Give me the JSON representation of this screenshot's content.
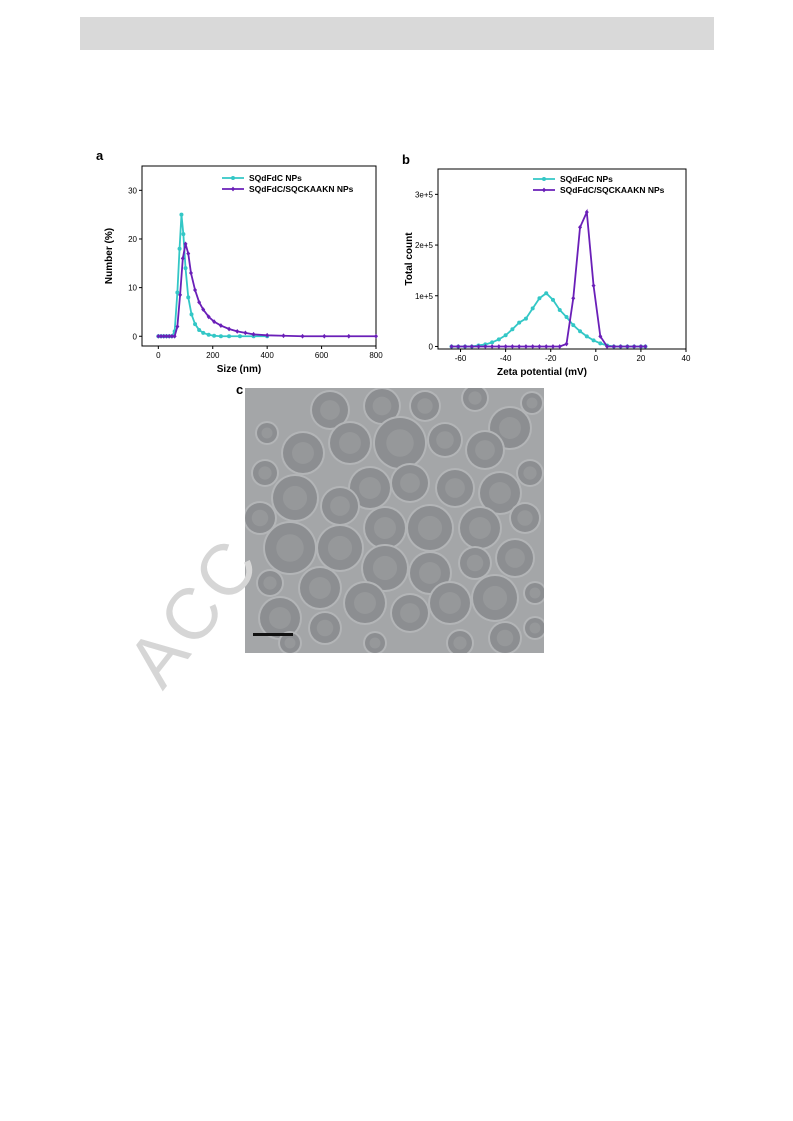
{
  "watermark_text": "ACC",
  "panels": {
    "a": "a",
    "b": "b",
    "c": "c"
  },
  "chart_data": [
    {
      "type": "line",
      "xlabel": "Size (nm)",
      "ylabel": "Number (%)",
      "xlim": [
        -60,
        800
      ],
      "ylim": [
        -2,
        35
      ],
      "xticks": [
        0,
        200,
        400,
        600,
        800
      ],
      "yticks": [
        0,
        10,
        20,
        30
      ],
      "legend_position": "top-right",
      "series": [
        {
          "name": "SQdFdC NPs",
          "color": "#33c7c6",
          "x": [
            0,
            10,
            20,
            30,
            40,
            50,
            60,
            70,
            78,
            85,
            92,
            100,
            110,
            122,
            135,
            150,
            165,
            185,
            205,
            230,
            260,
            300,
            350,
            400
          ],
          "y": [
            0,
            0,
            0,
            0,
            0,
            0,
            1,
            9,
            18,
            25,
            21,
            14,
            8,
            4.5,
            2.5,
            1.3,
            0.7,
            0.3,
            0.1,
            0,
            0,
            0,
            0,
            0
          ]
        },
        {
          "name": "SQdFdC/SQCKAAKN NPs",
          "color": "#6a1fb8",
          "x": [
            0,
            10,
            20,
            30,
            40,
            50,
            60,
            70,
            80,
            90,
            100,
            110,
            120,
            135,
            150,
            165,
            185,
            205,
            230,
            260,
            290,
            320,
            350,
            400,
            460,
            530,
            610,
            700,
            800
          ],
          "y": [
            0,
            0,
            0,
            0,
            0,
            0,
            0,
            2,
            8.5,
            16,
            19,
            17,
            13,
            9.5,
            7,
            5.5,
            4,
            3,
            2.2,
            1.5,
            1,
            0.7,
            0.4,
            0.2,
            0.1,
            0,
            0,
            0,
            0
          ]
        }
      ]
    },
    {
      "type": "line",
      "xlabel": "Zeta potential (mV)",
      "ylabel": "Total count",
      "xlim": [
        -70,
        40
      ],
      "ylim": [
        -5000,
        350000
      ],
      "xticks": [
        -60,
        -40,
        -20,
        0,
        20,
        40
      ],
      "xtick_labels": [
        "-60",
        "-40",
        "-20",
        "0",
        "20",
        "40"
      ],
      "yticks": [
        0,
        100000,
        200000,
        300000
      ],
      "ytick_labels": [
        "0",
        "1e+5",
        "2e+5",
        "3e+5"
      ],
      "legend_position": "top-right",
      "series": [
        {
          "name": "SQdFdC NPs",
          "color": "#33c7c6",
          "x": [
            -64,
            -61,
            -58,
            -55,
            -52,
            -49,
            -46,
            -43,
            -40,
            -37,
            -34,
            -31,
            -28,
            -25,
            -22,
            -19,
            -16,
            -13,
            -10,
            -7,
            -4,
            -1,
            2,
            5,
            8,
            11,
            14,
            17,
            20,
            22
          ],
          "y": [
            0,
            0,
            0,
            0,
            2000,
            4000,
            8000,
            14000,
            22000,
            34000,
            47000,
            55000,
            75000,
            95000,
            105000,
            92000,
            72000,
            58000,
            42000,
            30000,
            20000,
            12000,
            6000,
            2000,
            0,
            0,
            0,
            0,
            0,
            0
          ]
        },
        {
          "name": "SQdFdC/SQCKAAKN NPs",
          "color": "#6a1fb8",
          "x": [
            -64,
            -61,
            -58,
            -55,
            -52,
            -49,
            -46,
            -43,
            -40,
            -37,
            -34,
            -31,
            -28,
            -25,
            -22,
            -19,
            -16,
            -13,
            -10,
            -7,
            -4,
            -1,
            2,
            5,
            8,
            11,
            14,
            17,
            20,
            22
          ],
          "y": [
            0,
            0,
            0,
            0,
            0,
            0,
            0,
            0,
            0,
            0,
            0,
            0,
            0,
            0,
            0,
            0,
            0,
            5000,
            95000,
            235000,
            265000,
            120000,
            20000,
            0,
            0,
            0,
            0,
            0,
            0,
            0
          ]
        }
      ]
    }
  ]
}
